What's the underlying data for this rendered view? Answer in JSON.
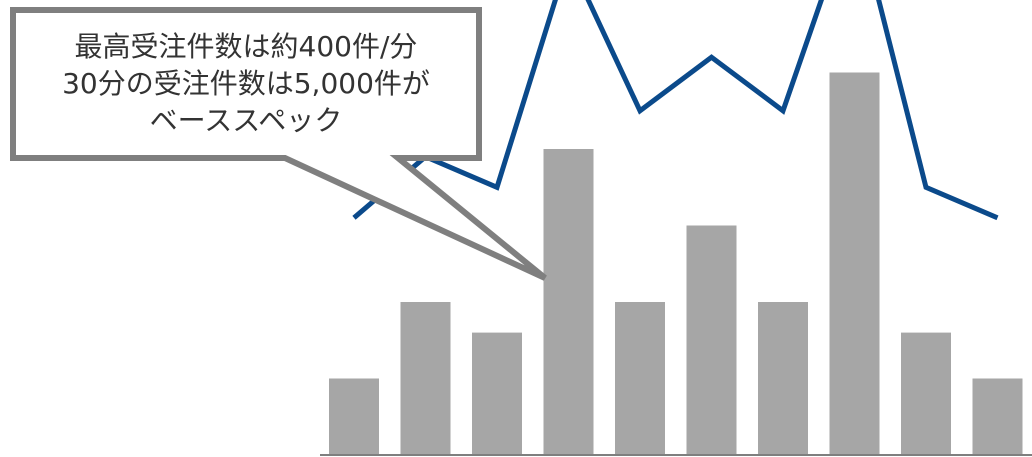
{
  "chart_data": {
    "type": "bar",
    "categories": [
      "",
      "",
      "",
      "",
      "",
      "",
      "",
      "",
      "",
      ""
    ],
    "series": [
      {
        "type": "bar",
        "values": [
          1.0,
          2.0,
          1.6,
          4.0,
          2.0,
          3.0,
          2.0,
          5.0,
          1.6,
          1.0
        ],
        "color": "#a6a6a6"
      },
      {
        "type": "line",
        "values": [
          3.1,
          3.9,
          3.5,
          6.5,
          4.5,
          5.2,
          4.5,
          7.2,
          3.5,
          3.1
        ],
        "color": "#0b4a8b",
        "estimated_points": [
          7,
          8
        ]
      }
    ],
    "ylim": [
      0,
      6
    ],
    "grid": false,
    "axes_labels_shown": false
  },
  "callout": {
    "lines": [
      "最高受注件数は約400件/分",
      "30分の受注件数は5,000件が",
      "ベーススペック"
    ]
  },
  "colors": {
    "bar": "#a6a6a6",
    "line": "#0b4a8b",
    "callout_border": "#7f7f7f",
    "axis": "#7f7f7f"
  }
}
